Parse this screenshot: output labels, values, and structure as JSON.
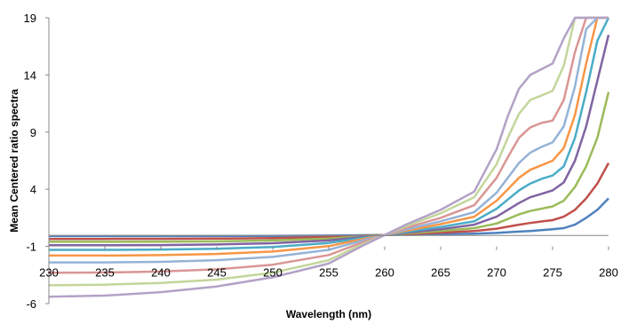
{
  "chart_data": {
    "type": "line",
    "title": "",
    "xlabel": "Wavelength (nm)",
    "ylabel": "Mean Centered ratio spectra",
    "xlim": [
      230,
      280
    ],
    "ylim": [
      -6,
      19
    ],
    "x_ticks": [
      "230",
      "235",
      "240",
      "245",
      "250",
      "255",
      "260",
      "265",
      "270",
      "275",
      "280"
    ],
    "y_ticks": [
      "19",
      "14",
      "9",
      "4",
      "-1",
      "-6"
    ],
    "grid": false,
    "legend": "none",
    "x": [
      230,
      235,
      240,
      245,
      250,
      255,
      258,
      260,
      262,
      265,
      268,
      270,
      271,
      272,
      273,
      274,
      275,
      276,
      277,
      278,
      279,
      280
    ],
    "series": [
      {
        "color": "#4F81BD",
        "values": [
          -0.1,
          -0.1,
          -0.1,
          -0.09,
          -0.08,
          -0.05,
          -0.02,
          0.0,
          0.02,
          0.06,
          0.12,
          0.18,
          0.24,
          0.3,
          0.35,
          0.42,
          0.5,
          0.6,
          0.9,
          1.5,
          2.2,
          3.2
        ]
      },
      {
        "color": "#C0504D",
        "values": [
          -0.35,
          -0.35,
          -0.34,
          -0.32,
          -0.27,
          -0.18,
          -0.07,
          0.0,
          0.08,
          0.2,
          0.35,
          0.55,
          0.72,
          0.9,
          1.05,
          1.18,
          1.3,
          1.6,
          2.2,
          3.2,
          4.5,
          6.3
        ]
      },
      {
        "color": "#9BBB59",
        "values": [
          -0.6,
          -0.6,
          -0.59,
          -0.56,
          -0.48,
          -0.32,
          -0.12,
          0.0,
          0.14,
          0.35,
          0.6,
          1.0,
          1.4,
          1.8,
          2.1,
          2.3,
          2.5,
          3.0,
          4.2,
          6.0,
          8.5,
          12.5
        ]
      },
      {
        "color": "#8064A2",
        "values": [
          -0.9,
          -0.9,
          -0.88,
          -0.83,
          -0.72,
          -0.48,
          -0.18,
          0.0,
          0.2,
          0.5,
          0.9,
          1.6,
          2.2,
          2.8,
          3.3,
          3.6,
          3.9,
          4.6,
          6.5,
          9.5,
          13.5,
          17.5
        ]
      },
      {
        "color": "#4BACC6",
        "values": [
          -1.3,
          -1.3,
          -1.27,
          -1.2,
          -1.05,
          -0.7,
          -0.26,
          0.0,
          0.28,
          0.7,
          1.2,
          2.3,
          3.1,
          3.9,
          4.5,
          4.9,
          5.2,
          6.0,
          8.5,
          12.5,
          17.0,
          19.0
        ]
      },
      {
        "color": "#F79646",
        "values": [
          -1.8,
          -1.8,
          -1.76,
          -1.66,
          -1.45,
          -0.98,
          -0.36,
          0.0,
          0.38,
          0.95,
          1.6,
          3.0,
          4.0,
          5.0,
          5.7,
          6.1,
          6.5,
          7.6,
          10.5,
          15.0,
          19.0,
          19.0
        ]
      },
      {
        "color": "#95B3D7",
        "values": [
          -2.4,
          -2.4,
          -2.35,
          -2.2,
          -1.92,
          -1.3,
          -0.48,
          0.0,
          0.5,
          1.2,
          2.0,
          3.7,
          5.0,
          6.3,
          7.2,
          7.7,
          8.1,
          9.5,
          13.0,
          18.0,
          19.0,
          19.0
        ]
      },
      {
        "color": "#D99694",
        "values": [
          -3.3,
          -3.28,
          -3.2,
          -3.0,
          -2.6,
          -1.75,
          -0.65,
          0.0,
          0.65,
          1.5,
          2.6,
          5.0,
          6.8,
          8.5,
          9.4,
          9.8,
          10.0,
          11.8,
          16.0,
          19.0,
          19.0,
          19.0
        ]
      },
      {
        "color": "#C3D69B",
        "values": [
          -4.4,
          -4.35,
          -4.2,
          -3.9,
          -3.3,
          -2.2,
          -0.82,
          0.0,
          0.8,
          1.9,
          3.3,
          6.2,
          8.5,
          10.6,
          11.8,
          12.2,
          12.6,
          14.8,
          19.0,
          19.0,
          19.0,
          19.0
        ]
      },
      {
        "color": "#B3A2C7",
        "values": [
          -5.4,
          -5.3,
          -5.0,
          -4.5,
          -3.7,
          -2.5,
          -0.95,
          0.0,
          0.95,
          2.2,
          3.8,
          7.5,
          10.4,
          12.8,
          14.0,
          14.5,
          15.0,
          17.2,
          19.0,
          19.0,
          19.0,
          19.0
        ]
      }
    ]
  }
}
